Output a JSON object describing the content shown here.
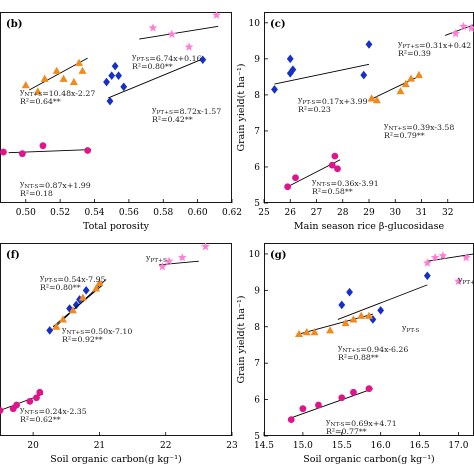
{
  "colors": {
    "pink": "#ff7fd6",
    "orange": "#f08a1c",
    "blue": "#1530c8",
    "magenta": "#e0148c"
  },
  "chart_data": [
    {
      "panel": "(b)",
      "type": "scatter",
      "xlabel": "Total porosity",
      "ylabel": "",
      "xlim": [
        0.485,
        0.62
      ],
      "ylim": [
        4.4,
        10.4
      ],
      "xticks": [
        "0.50",
        "0.52",
        "0.54",
        "0.56",
        "0.58",
        "0.60",
        "0.62"
      ],
      "yticks": [],
      "grid": false,
      "series": [
        {
          "color": "#ff7fd6",
          "marker": "star",
          "points": [
            [
              0.574,
              9.9
            ],
            [
              0.585,
              9.7
            ],
            [
              0.595,
              9.3
            ],
            [
              0.611,
              10.3
            ]
          ],
          "fit": [
            [
              0.566,
              9.55
            ],
            [
              0.612,
              9.95
            ]
          ]
        },
        {
          "color": "#1530c8",
          "marker": "diamond",
          "points": [
            [
              0.547,
              8.2
            ],
            [
              0.55,
              8.4
            ],
            [
              0.552,
              8.7
            ],
            [
              0.554,
              8.4
            ],
            [
              0.557,
              8.05
            ],
            [
              0.549,
              7.6
            ],
            [
              0.603,
              8.9
            ]
          ],
          "fit": [
            [
              0.548,
              7.7
            ],
            [
              0.604,
              8.95
            ]
          ]
        },
        {
          "color": "#f08a1c",
          "marker": "triangle",
          "points": [
            [
              0.5,
              8.1
            ],
            [
              0.507,
              7.9
            ],
            [
              0.511,
              8.3
            ],
            [
              0.518,
              8.55
            ],
            [
              0.522,
              8.3
            ],
            [
              0.528,
              8.2
            ],
            [
              0.533,
              8.55
            ],
            [
              0.531,
              8.8
            ]
          ],
          "fit": [
            [
              0.502,
              7.95
            ],
            [
              0.536,
              8.95
            ]
          ]
        },
        {
          "color": "#e0148c",
          "marker": "circle",
          "points": [
            [
              0.487,
              6.0
            ],
            [
              0.498,
              5.95
            ],
            [
              0.51,
              6.2
            ],
            [
              0.536,
              6.05
            ]
          ],
          "fit": [
            [
              0.49,
              5.98
            ],
            [
              0.538,
              6.08
            ]
          ]
        }
      ],
      "annotations": [
        {
          "lines": [
            "y_PT-S=6.74x+0.16",
            "R²=0.80**"
          ]
        },
        {
          "lines": [
            "y_NT+S=10.48x-2.27",
            "R²=0.64**"
          ]
        },
        {
          "lines": [
            "y_PT+S=8.72x-1.57",
            "R²=0.42**"
          ]
        },
        {
          "lines": [
            "y_NT-S=0.87x+1.99",
            "R²=0.18"
          ]
        }
      ]
    },
    {
      "panel": "(c)",
      "type": "scatter",
      "xlabel": "Main season rice β-glucosidase",
      "ylabel": "Grain yield(t ha⁻¹)",
      "xlim": [
        25,
        33
      ],
      "ylim": [
        5,
        10.3
      ],
      "xticks": [
        "25",
        "26",
        "27",
        "28",
        "29",
        "30",
        "31",
        "32"
      ],
      "yticks": [
        "5",
        "6",
        "7",
        "8",
        "9",
        "10"
      ],
      "grid": false,
      "series": [
        {
          "color": "#ff7fd6",
          "marker": "star",
          "points": [
            [
              32.3,
              9.7
            ],
            [
              32.6,
              9.9
            ],
            [
              32.9,
              9.85
            ]
          ],
          "fit": [
            [
              31.9,
              9.65
            ],
            [
              33.0,
              9.95
            ]
          ]
        },
        {
          "color": "#1530c8",
          "marker": "diamond",
          "points": [
            [
              25.4,
              8.15
            ],
            [
              26.0,
              8.6
            ],
            [
              26.1,
              8.7
            ],
            [
              26.0,
              9.0
            ],
            [
              28.8,
              8.55
            ],
            [
              29.0,
              9.4
            ]
          ],
          "fit": [
            [
              25.4,
              8.3
            ],
            [
              29.0,
              8.85
            ]
          ]
        },
        {
          "color": "#f08a1c",
          "marker": "triangle",
          "points": [
            [
              29.1,
              7.9
            ],
            [
              29.3,
              7.85
            ],
            [
              30.2,
              8.1
            ],
            [
              30.4,
              8.3
            ],
            [
              30.6,
              8.45
            ],
            [
              30.9,
              8.55
            ]
          ],
          "fit": [
            [
              29.0,
              7.85
            ],
            [
              31.0,
              8.55
            ]
          ]
        },
        {
          "color": "#e0148c",
          "marker": "circle",
          "points": [
            [
              25.9,
              5.45
            ],
            [
              26.2,
              5.7
            ],
            [
              27.6,
              6.05
            ],
            [
              27.7,
              6.3
            ],
            [
              27.8,
              5.95
            ]
          ],
          "fit": [
            [
              25.9,
              5.45
            ],
            [
              27.9,
              6.2
            ]
          ]
        }
      ],
      "annotations": [
        {
          "lines": [
            "y_PT+S=0.31x+0.42",
            "R²=0.39"
          ]
        },
        {
          "lines": [
            "y_PT-S=0.17x+3.99",
            "R²=0.23"
          ]
        },
        {
          "lines": [
            "y_NT+S=0.39x-3.58",
            "R²=0.79**"
          ]
        },
        {
          "lines": [
            "y_NT-S=0.36x-3.91",
            "R²=0.58**"
          ]
        }
      ]
    },
    {
      "panel": "(f)",
      "type": "scatter",
      "xlabel": "Soil organic carbon(g kg⁻¹)",
      "ylabel": "",
      "xlim": [
        19.5,
        23
      ],
      "ylim": [
        5,
        10.3
      ],
      "xticks": [
        "20",
        "21",
        "22",
        "23"
      ],
      "yticks": [],
      "grid": false,
      "series": [
        {
          "color": "#ff7fd6",
          "marker": "star",
          "points": [
            [
              21.95,
              9.65
            ],
            [
              22.05,
              9.8
            ],
            [
              22.25,
              9.9
            ],
            [
              22.6,
              10.2
            ]
          ],
          "fit": [
            [
              21.9,
              9.7
            ],
            [
              22.5,
              9.8
            ]
          ]
        },
        {
          "color": "#1530c8",
          "marker": "diamond",
          "points": [
            [
              20.25,
              7.9
            ],
            [
              20.65,
              8.6
            ],
            [
              20.8,
              9.0
            ],
            [
              20.7,
              8.75
            ],
            [
              20.55,
              8.5
            ]
          ],
          "fit": [
            [
              20.25,
              7.85
            ],
            [
              21.1,
              9.3
            ]
          ]
        },
        {
          "color": "#f08a1c",
          "marker": "triangle",
          "points": [
            [
              20.35,
              8.0
            ],
            [
              20.45,
              8.2
            ],
            [
              20.6,
              8.45
            ],
            [
              20.75,
              8.8
            ],
            [
              20.95,
              9.05
            ],
            [
              21.0,
              9.2
            ]
          ],
          "fit": [
            [
              20.3,
              8.0
            ],
            [
              21.05,
              9.15
            ]
          ]
        },
        {
          "color": "#e0148c",
          "marker": "circle",
          "points": [
            [
              19.5,
              5.7
            ],
            [
              19.7,
              5.75
            ],
            [
              19.75,
              5.85
            ],
            [
              19.95,
              5.95
            ],
            [
              20.05,
              6.05
            ],
            [
              20.1,
              6.2
            ]
          ],
          "fit": [
            [
              19.5,
              5.7
            ],
            [
              20.15,
              6.15
            ]
          ]
        }
      ],
      "annotations": [
        {
          "lines": [
            "y_PT+S"
          ]
        },
        {
          "lines": [
            "y_PT-S=0.54x-7.95",
            "R²=0.80**"
          ]
        },
        {
          "lines": [
            "y_NT+S=0.50x-7.10",
            "R²=0.92**"
          ]
        },
        {
          "lines": [
            "y_NT-S=0.24x-2.35",
            "R²=0.62**"
          ]
        }
      ]
    },
    {
      "panel": "(g)",
      "type": "scatter",
      "xlabel": "Soil organic carbon(g kg⁻¹)",
      "ylabel": "Grain yield(t ha⁻¹)",
      "xlim": [
        14.5,
        17.2
      ],
      "ylim": [
        5,
        10.3
      ],
      "xticks": [
        "14.5",
        "15.0",
        "15.5",
        "16.0",
        "16.5",
        "17.0"
      ],
      "yticks": [
        "5",
        "6",
        "7",
        "8",
        "9",
        "10"
      ],
      "grid": false,
      "series": [
        {
          "color": "#ff7fd6",
          "marker": "star",
          "points": [
            [
              16.6,
              9.75
            ],
            [
              16.8,
              9.95
            ],
            [
              17.0,
              9.25
            ],
            [
              17.1,
              9.9
            ],
            [
              16.7,
              9.9
            ]
          ],
          "fit": [
            [
              16.6,
              9.8
            ],
            [
              17.2,
              10.0
            ]
          ]
        },
        {
          "color": "#1530c8",
          "marker": "diamond",
          "points": [
            [
              15.5,
              8.6
            ],
            [
              15.6,
              8.95
            ],
            [
              15.9,
              8.2
            ],
            [
              16.0,
              8.45
            ],
            [
              16.6,
              9.4
            ]
          ],
          "fit": [
            [
              15.45,
              8.2
            ],
            [
              16.6,
              9.15
            ]
          ]
        },
        {
          "color": "#f08a1c",
          "marker": "triangle",
          "points": [
            [
              14.95,
              7.8
            ],
            [
              15.05,
              7.85
            ],
            [
              15.15,
              7.85
            ],
            [
              15.35,
              7.9
            ],
            [
              15.55,
              8.1
            ],
            [
              15.65,
              8.2
            ],
            [
              15.75,
              8.3
            ],
            [
              15.85,
              8.3
            ]
          ],
          "fit": [
            [
              14.95,
              7.8
            ],
            [
              15.9,
              8.35
            ]
          ]
        },
        {
          "color": "#e0148c",
          "marker": "circle",
          "points": [
            [
              14.85,
              5.45
            ],
            [
              15.0,
              5.75
            ],
            [
              15.2,
              5.85
            ],
            [
              15.5,
              6.05
            ],
            [
              15.65,
              6.2
            ],
            [
              15.85,
              6.3
            ]
          ],
          "fit": [
            [
              14.85,
              5.5
            ],
            [
              15.9,
              6.3
            ]
          ]
        }
      ],
      "annotations": [
        {
          "lines": [
            "y_PT+"
          ]
        },
        {
          "lines": [
            "y_PT-S"
          ]
        },
        {
          "lines": [
            "y_NT+S=0.94x-6.26",
            "R²=0.88**"
          ]
        },
        {
          "lines": [
            "y_NT-S=0.69x+4.71",
            "R²=0.77**"
          ]
        }
      ]
    }
  ]
}
